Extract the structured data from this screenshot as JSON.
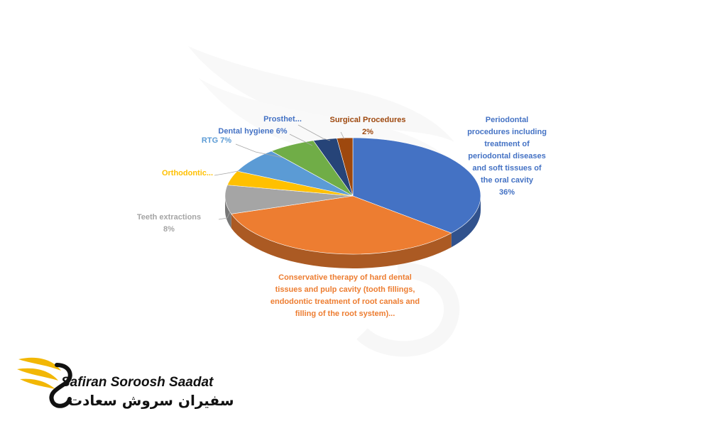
{
  "chart_data": {
    "type": "pie",
    "title": "",
    "slices": [
      {
        "name": "Periodontal procedures including treatment of periodontal diseases and soft tissues of the oral cavity",
        "value": 36,
        "color": "#4472C4"
      },
      {
        "name": "Conservative therapy of hard dental tissues and pulp cavity (tooth fillings, endodontic treatment of root canals and filling of the root system)",
        "value": 34,
        "color": "#ED7D31"
      },
      {
        "name": "Teeth extractions",
        "value": 8,
        "color": "#A5A5A5"
      },
      {
        "name": "Orthodontic",
        "value": 4,
        "color": "#FFC000"
      },
      {
        "name": "RTG",
        "value": 7,
        "color": "#5B9BD5"
      },
      {
        "name": "Dental hygiene",
        "value": 6,
        "color": "#70AD47"
      },
      {
        "name": "Prosthetics",
        "value": 3,
        "color": "#264478"
      },
      {
        "name": "Surgical Procedures",
        "value": 2,
        "color": "#9E480E"
      }
    ],
    "labels": [
      {
        "lines": [
          "Periodontal",
          "procedures including",
          "treatment of",
          "periodontal diseases",
          "and soft tissues of",
          "the oral cavity",
          "36%"
        ],
        "color": "#4472C4"
      },
      {
        "lines": [
          "Conservative therapy of hard dental",
          "tissues and pulp cavity (tooth fillings,",
          "endodontic treatment of root canals and",
          "filling of the root system)..."
        ],
        "color": "#ED7D31"
      },
      {
        "lines": [
          "Teeth extractions",
          "8%"
        ],
        "color": "#A5A5A5"
      },
      {
        "lines": [
          "Orthodontic..."
        ],
        "color": "#FFC000"
      },
      {
        "lines": [
          "RTG 7%"
        ],
        "color": "#5B9BD5"
      },
      {
        "lines": [
          "Dental hygiene 6%"
        ],
        "color": "#4472C4"
      },
      {
        "lines": [
          "Prosthet..."
        ],
        "color": "#4472C4"
      },
      {
        "lines": [
          "Surgical Procedures",
          "2%"
        ],
        "color": "#9E480E"
      }
    ],
    "legend": "none",
    "view": "3d-tilted"
  },
  "brand": {
    "name_en": "Safiran Soroosh Saadat",
    "name_fa": "سفیران سروش سعادت"
  }
}
